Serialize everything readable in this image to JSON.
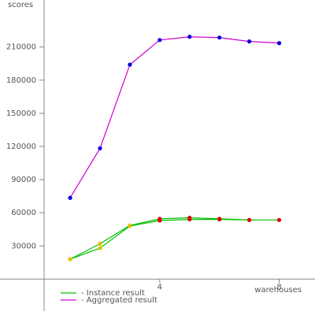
{
  "chart_data": {
    "type": "line",
    "ylabel": "scores",
    "xlabel": "warehouses",
    "xlim": [
      -1.35,
      9.2
    ],
    "ylim": [
      -32500,
      252500
    ],
    "xticks": [
      4,
      8
    ],
    "yticks": [
      30000,
      60000,
      90000,
      120000,
      150000,
      180000,
      210000
    ],
    "series": [
      {
        "name": "- Instance result",
        "color": "#00c000",
        "x": [
          1,
          2,
          3,
          4,
          5,
          6,
          7,
          8
        ],
        "values": [
          18000,
          32000,
          48500,
          54500,
          55500,
          54500,
          53500,
          53500
        ],
        "marker_colors": [
          "#e0c000",
          "#e0c000",
          "#e0c000",
          "#e00000",
          "#e00000",
          "#e00000",
          "#e00000",
          "#e00000"
        ]
      },
      {
        "color": "#00c000",
        "x": [
          1,
          2,
          3,
          4,
          5,
          6,
          7
        ],
        "values": [
          18000,
          28000,
          48000,
          53000,
          54000,
          54000,
          53500
        ],
        "marker_colors": [
          "#e0c000",
          "#e0c000",
          "#e0c000",
          "#e00000",
          "#e00000",
          "#e00000",
          "#e00000"
        ]
      },
      {
        "name": "- Aggregated result",
        "color": "#d000d0",
        "x": [
          1,
          2,
          3,
          4,
          5,
          6,
          7,
          8
        ],
        "values": [
          73500,
          118300,
          194000,
          216300,
          219200,
          218500,
          215000,
          213500
        ],
        "marker_colors": [
          "#0000e0",
          "#0000e0",
          "#0000e0",
          "#0000e0",
          "#0000e0",
          "#0000e0",
          "#0000e0",
          "#0000e0"
        ]
      }
    ]
  }
}
